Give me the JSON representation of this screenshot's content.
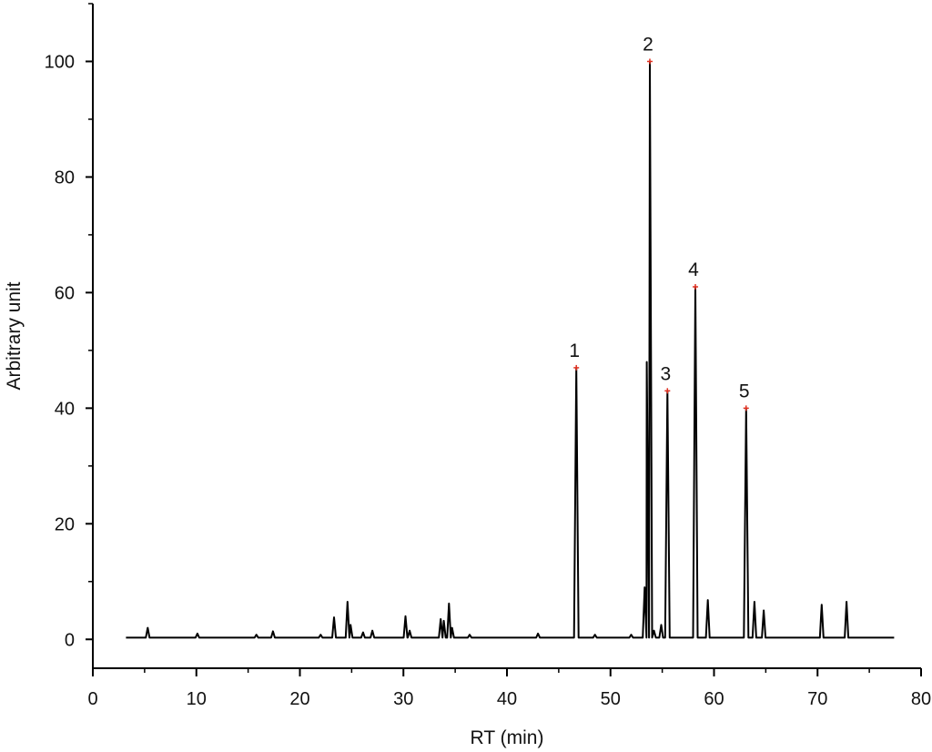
{
  "chart_data": {
    "type": "line",
    "title": "",
    "xlabel": "RT (min)",
    "ylabel": "Arbitrary unit",
    "xlim": [
      0,
      80
    ],
    "ylim": [
      -5,
      110
    ],
    "x_ticks": [
      0,
      10,
      20,
      30,
      40,
      50,
      60,
      70,
      80
    ],
    "y_ticks": [
      0,
      20,
      40,
      60,
      80,
      100
    ],
    "grid": false,
    "legend": "none",
    "line_color": "#000000",
    "marker_color": "#e03020",
    "series": [
      {
        "name": "",
        "baseline": 0.3,
        "x_start": 3.2,
        "x_end": 77.4,
        "peaks": [
          {
            "x": 5.3,
            "y": 2.0
          },
          {
            "x": 10.1,
            "y": 1.0
          },
          {
            "x": 15.8,
            "y": 0.8
          },
          {
            "x": 17.4,
            "y": 1.4
          },
          {
            "x": 22.0,
            "y": 0.8
          },
          {
            "x": 23.3,
            "y": 3.8
          },
          {
            "x": 24.6,
            "y": 6.5
          },
          {
            "x": 24.9,
            "y": 2.5
          },
          {
            "x": 26.1,
            "y": 1.2
          },
          {
            "x": 27.0,
            "y": 1.5
          },
          {
            "x": 30.2,
            "y": 4.0
          },
          {
            "x": 30.6,
            "y": 1.5
          },
          {
            "x": 33.6,
            "y": 3.5
          },
          {
            "x": 33.9,
            "y": 3.2
          },
          {
            "x": 34.4,
            "y": 6.2
          },
          {
            "x": 34.7,
            "y": 2.0
          },
          {
            "x": 36.4,
            "y": 0.8
          },
          {
            "x": 43.0,
            "y": 1.0
          },
          {
            "x": 46.7,
            "y": 47.0
          },
          {
            "x": 48.5,
            "y": 0.8
          },
          {
            "x": 52.0,
            "y": 0.8
          },
          {
            "x": 53.3,
            "y": 9.0
          },
          {
            "x": 53.5,
            "y": 48.0
          },
          {
            "x": 53.8,
            "y": 100.0
          },
          {
            "x": 54.2,
            "y": 1.5
          },
          {
            "x": 54.9,
            "y": 2.5
          },
          {
            "x": 55.5,
            "y": 43.0
          },
          {
            "x": 58.2,
            "y": 61.0
          },
          {
            "x": 59.4,
            "y": 6.8
          },
          {
            "x": 63.1,
            "y": 40.0
          },
          {
            "x": 63.9,
            "y": 6.5
          },
          {
            "x": 64.8,
            "y": 5.0
          },
          {
            "x": 70.4,
            "y": 6.0
          },
          {
            "x": 72.8,
            "y": 6.5
          }
        ]
      }
    ],
    "annotations": [
      {
        "label": "1",
        "x": 46.7,
        "y": 47.0
      },
      {
        "label": "2",
        "x": 53.8,
        "y": 100.0
      },
      {
        "label": "3",
        "x": 55.5,
        "y": 43.0
      },
      {
        "label": "4",
        "x": 58.2,
        "y": 61.0
      },
      {
        "label": "5",
        "x": 63.1,
        "y": 40.0
      }
    ]
  }
}
